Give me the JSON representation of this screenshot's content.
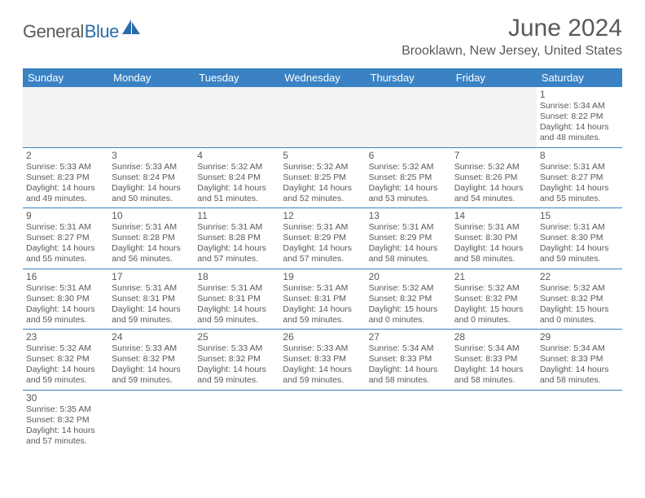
{
  "brand": {
    "part1": "General",
    "part2": "Blue"
  },
  "title": "June 2024",
  "location": "Brooklawn, New Jersey, United States",
  "colors": {
    "header_bg": "#3a82c4",
    "header_text": "#ffffff",
    "text": "#595959",
    "brand_blue": "#2b6ca8",
    "row_border": "#3a82c4",
    "empty_bg": "#f2f2f2"
  },
  "weekdays": [
    "Sunday",
    "Monday",
    "Tuesday",
    "Wednesday",
    "Thursday",
    "Friday",
    "Saturday"
  ],
  "weeks": [
    [
      null,
      null,
      null,
      null,
      null,
      null,
      {
        "d": "1",
        "sr": "5:34 AM",
        "ss": "8:22 PM",
        "dl": "14 hours and 48 minutes."
      }
    ],
    [
      {
        "d": "2",
        "sr": "5:33 AM",
        "ss": "8:23 PM",
        "dl": "14 hours and 49 minutes."
      },
      {
        "d": "3",
        "sr": "5:33 AM",
        "ss": "8:24 PM",
        "dl": "14 hours and 50 minutes."
      },
      {
        "d": "4",
        "sr": "5:32 AM",
        "ss": "8:24 PM",
        "dl": "14 hours and 51 minutes."
      },
      {
        "d": "5",
        "sr": "5:32 AM",
        "ss": "8:25 PM",
        "dl": "14 hours and 52 minutes."
      },
      {
        "d": "6",
        "sr": "5:32 AM",
        "ss": "8:25 PM",
        "dl": "14 hours and 53 minutes."
      },
      {
        "d": "7",
        "sr": "5:32 AM",
        "ss": "8:26 PM",
        "dl": "14 hours and 54 minutes."
      },
      {
        "d": "8",
        "sr": "5:31 AM",
        "ss": "8:27 PM",
        "dl": "14 hours and 55 minutes."
      }
    ],
    [
      {
        "d": "9",
        "sr": "5:31 AM",
        "ss": "8:27 PM",
        "dl": "14 hours and 55 minutes."
      },
      {
        "d": "10",
        "sr": "5:31 AM",
        "ss": "8:28 PM",
        "dl": "14 hours and 56 minutes."
      },
      {
        "d": "11",
        "sr": "5:31 AM",
        "ss": "8:28 PM",
        "dl": "14 hours and 57 minutes."
      },
      {
        "d": "12",
        "sr": "5:31 AM",
        "ss": "8:29 PM",
        "dl": "14 hours and 57 minutes."
      },
      {
        "d": "13",
        "sr": "5:31 AM",
        "ss": "8:29 PM",
        "dl": "14 hours and 58 minutes."
      },
      {
        "d": "14",
        "sr": "5:31 AM",
        "ss": "8:30 PM",
        "dl": "14 hours and 58 minutes."
      },
      {
        "d": "15",
        "sr": "5:31 AM",
        "ss": "8:30 PM",
        "dl": "14 hours and 59 minutes."
      }
    ],
    [
      {
        "d": "16",
        "sr": "5:31 AM",
        "ss": "8:30 PM",
        "dl": "14 hours and 59 minutes."
      },
      {
        "d": "17",
        "sr": "5:31 AM",
        "ss": "8:31 PM",
        "dl": "14 hours and 59 minutes."
      },
      {
        "d": "18",
        "sr": "5:31 AM",
        "ss": "8:31 PM",
        "dl": "14 hours and 59 minutes."
      },
      {
        "d": "19",
        "sr": "5:31 AM",
        "ss": "8:31 PM",
        "dl": "14 hours and 59 minutes."
      },
      {
        "d": "20",
        "sr": "5:32 AM",
        "ss": "8:32 PM",
        "dl": "15 hours and 0 minutes."
      },
      {
        "d": "21",
        "sr": "5:32 AM",
        "ss": "8:32 PM",
        "dl": "15 hours and 0 minutes."
      },
      {
        "d": "22",
        "sr": "5:32 AM",
        "ss": "8:32 PM",
        "dl": "15 hours and 0 minutes."
      }
    ],
    [
      {
        "d": "23",
        "sr": "5:32 AM",
        "ss": "8:32 PM",
        "dl": "14 hours and 59 minutes."
      },
      {
        "d": "24",
        "sr": "5:33 AM",
        "ss": "8:32 PM",
        "dl": "14 hours and 59 minutes."
      },
      {
        "d": "25",
        "sr": "5:33 AM",
        "ss": "8:32 PM",
        "dl": "14 hours and 59 minutes."
      },
      {
        "d": "26",
        "sr": "5:33 AM",
        "ss": "8:33 PM",
        "dl": "14 hours and 59 minutes."
      },
      {
        "d": "27",
        "sr": "5:34 AM",
        "ss": "8:33 PM",
        "dl": "14 hours and 58 minutes."
      },
      {
        "d": "28",
        "sr": "5:34 AM",
        "ss": "8:33 PM",
        "dl": "14 hours and 58 minutes."
      },
      {
        "d": "29",
        "sr": "5:34 AM",
        "ss": "8:33 PM",
        "dl": "14 hours and 58 minutes."
      }
    ],
    [
      {
        "d": "30",
        "sr": "5:35 AM",
        "ss": "8:32 PM",
        "dl": "14 hours and 57 minutes."
      },
      null,
      null,
      null,
      null,
      null,
      null
    ]
  ],
  "labels": {
    "sunrise": "Sunrise:",
    "sunset": "Sunset:",
    "daylight": "Daylight:"
  }
}
